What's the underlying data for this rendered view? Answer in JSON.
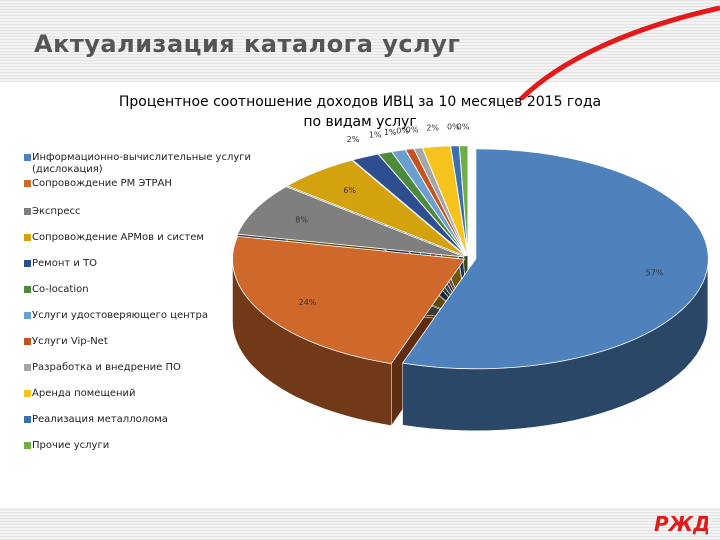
{
  "slide": {
    "title": "Актуализация каталога услуг"
  },
  "colors": {
    "accent_red": "#e21a1a",
    "title_gray": "#555555"
  },
  "chart_data": {
    "type": "pie",
    "title": "Процентное соотношение доходов ИВЦ за 10 месяцев 2015 года по видам услуг",
    "title_lines": [
      "Процентное соотношение доходов ИВЦ за 10 месяцев 2015 года",
      "по видам услуг"
    ],
    "legend_position": "left",
    "categories": [
      "Информационно-вычислительные услуги (дислокация)",
      "Сопровождение РМ ЭТРАН",
      "Экспресс",
      "Сопровождение АРМов и систем",
      "Ремонт и ТО",
      "Co-location",
      "Услуги удостоверяющего центра",
      "Услуги Vip-Net",
      "Разработка и внедрение ПО",
      "Аренда помещений",
      "Реализация металлолома",
      "Прочие услуги"
    ],
    "values": [
      57,
      24,
      8,
      6,
      2,
      1,
      1,
      0,
      0,
      2,
      0,
      0
    ],
    "labels": [
      "57%",
      "24%",
      "8%",
      "6%",
      "2%",
      "1%",
      "1%",
      "0%",
      "0%",
      "2%",
      "0%",
      "0%"
    ],
    "colors": [
      "#4f81bd",
      "#d0672b",
      "#7f7f7f",
      "#d4a20e",
      "#2e4f8f",
      "#4e8a3c",
      "#6aa0d0",
      "#c7511f",
      "#a6a6a6",
      "#f5c31c",
      "#3a6fb0",
      "#70ad47"
    ]
  }
}
